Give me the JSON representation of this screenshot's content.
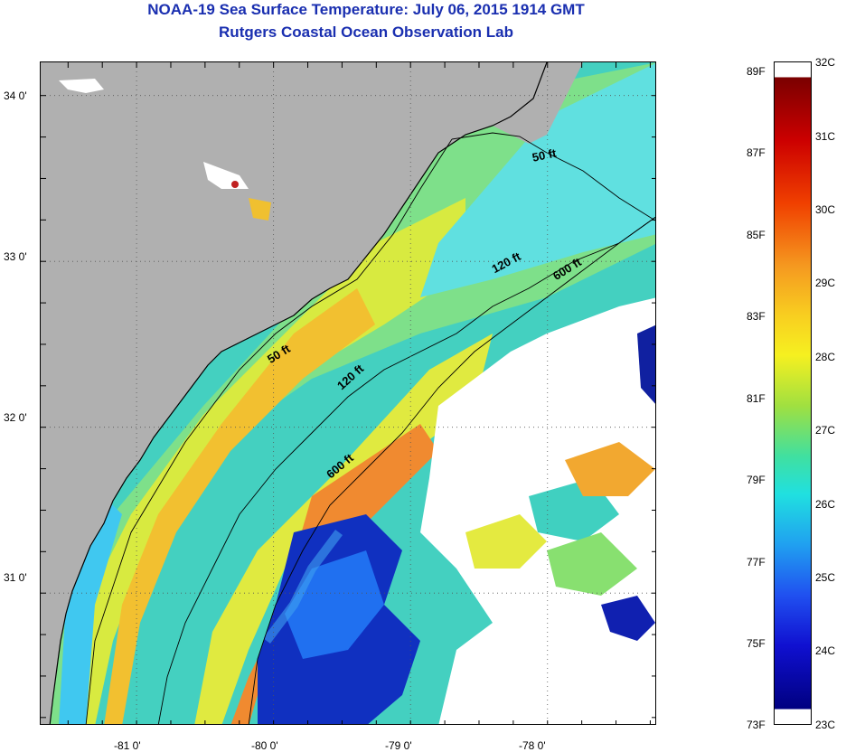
{
  "header": {
    "title": "NOAA-19 Sea Surface Temperature:  July 06, 2015 1914 GMT",
    "subtitle": "Rutgers Coastal Ocean Observation Lab"
  },
  "map": {
    "lon_range": [
      -81.7,
      -77.2
    ],
    "lat_range": [
      30.2,
      34.2
    ],
    "lat_ticks": [
      {
        "value": 34.0,
        "label": "34 0'"
      },
      {
        "value": 33.0,
        "label": "33 0'"
      },
      {
        "value": 32.0,
        "label": "32 0'"
      },
      {
        "value": 31.0,
        "label": "31 0'"
      }
    ],
    "lon_ticks": [
      {
        "value": -81.0,
        "label": "-81 0'"
      },
      {
        "value": -80.0,
        "label": "-80 0'"
      },
      {
        "value": -79.0,
        "label": "-79 0'"
      },
      {
        "value": -78.0,
        "label": "-78 0'"
      }
    ],
    "contour_labels": [
      {
        "text": "50 ft"
      },
      {
        "text": "50 ft"
      },
      {
        "text": "120 ft"
      },
      {
        "text": "120 ft"
      },
      {
        "text": "600 ft"
      },
      {
        "text": "600 ft"
      }
    ],
    "colors": {
      "land": "#b0b0b0",
      "cloud": "#ffffff",
      "grid": "#555555"
    }
  },
  "colorbar": {
    "range_c": [
      23,
      32
    ],
    "celsius_labels": [
      "32C",
      "31C",
      "30C",
      "29C",
      "28C",
      "27C",
      "26C",
      "25C",
      "24C",
      "23C"
    ],
    "fahrenheit_labels": [
      {
        "value": 89,
        "label": "89F"
      },
      {
        "value": 87,
        "label": "87F"
      },
      {
        "value": 85,
        "label": "85F"
      },
      {
        "value": 83,
        "label": "83F"
      },
      {
        "value": 81,
        "label": "81F"
      },
      {
        "value": 79,
        "label": "79F"
      },
      {
        "value": 77,
        "label": "77F"
      },
      {
        "value": 75,
        "label": "75F"
      },
      {
        "value": 73,
        "label": "73F"
      }
    ]
  }
}
